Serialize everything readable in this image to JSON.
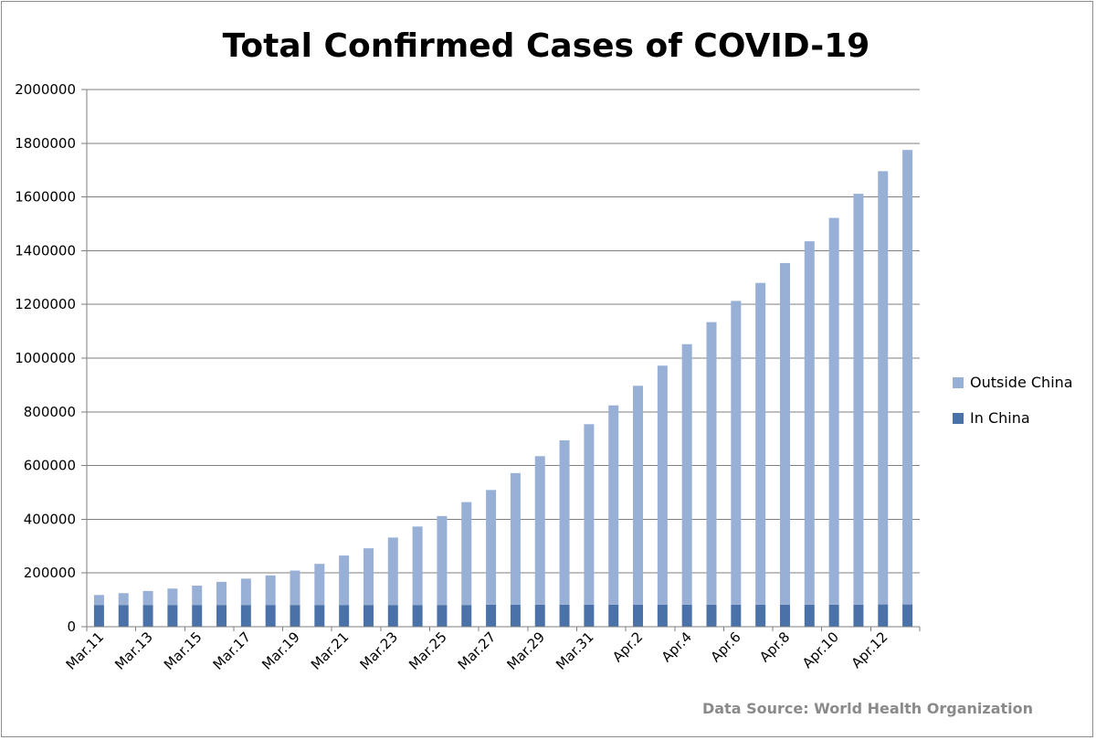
{
  "chart_data": {
    "type": "bar",
    "stacked": true,
    "title": "Total Confirmed Cases of COVID-19",
    "source_note": "Data Source: World Health Organization",
    "xlabel": "",
    "ylabel": "",
    "ylim": [
      0,
      2000000
    ],
    "y_ticks": [
      "0",
      "200000",
      "400000",
      "600000",
      "800000",
      "1000000",
      "1200000",
      "1400000",
      "1600000",
      "1800000",
      "2000000"
    ],
    "grid": true,
    "legend_position": "right",
    "categories": [
      "Mar.11",
      "Mar.12",
      "Mar.13",
      "Mar.14",
      "Mar.15",
      "Mar.16",
      "Mar.17",
      "Mar.18",
      "Mar.19",
      "Mar.20",
      "Mar.21",
      "Mar.22",
      "Mar.23",
      "Mar.24",
      "Mar.25",
      "Mar.26",
      "Mar.27",
      "Mar.28",
      "Mar.29",
      "Mar.30",
      "Mar.31",
      "Apr.1",
      "Apr.2",
      "Apr.3",
      "Apr.4",
      "Apr.5",
      "Apr.6",
      "Apr.7",
      "Apr.8",
      "Apr.9",
      "Apr.10",
      "Apr.11",
      "Apr.12",
      "Apr.13"
    ],
    "x_tick_labels": [
      "Mar.11",
      "",
      "Mar.13",
      "",
      "Mar.15",
      "",
      "Mar.17",
      "",
      "Mar.19",
      "",
      "Mar.21",
      "",
      "Mar.23",
      "",
      "Mar.25",
      "",
      "Mar.27",
      "",
      "Mar.29",
      "",
      "Mar.31",
      "",
      "Apr.2",
      "",
      "Apr.4",
      "",
      "Apr.6",
      "",
      "Apr.8",
      "",
      "Apr.10",
      "",
      "Apr.12",
      ""
    ],
    "series": [
      {
        "name": "In China",
        "color": "#4a72a8",
        "values": [
          81000,
          81000,
          81000,
          81000,
          81000,
          81000,
          81000,
          81000,
          81000,
          81000,
          81000,
          81000,
          81000,
          81000,
          81000,
          81000,
          82000,
          82000,
          82000,
          82000,
          82000,
          82000,
          82000,
          82000,
          82000,
          82000,
          82000,
          82000,
          82000,
          82000,
          82000,
          82000,
          83000,
          83000
        ]
      },
      {
        "name": "Outside China",
        "color": "#98afd6",
        "values": [
          37000,
          44000,
          52000,
          61000,
          72000,
          86000,
          98000,
          110000,
          128000,
          153000,
          184000,
          211000,
          251000,
          292000,
          331000,
          383000,
          427000,
          490000,
          553000,
          612000,
          672000,
          742000,
          815000,
          890000,
          970000,
          1052000,
          1131000,
          1198000,
          1272000,
          1353000,
          1440000,
          1530000,
          1613000,
          1692000
        ]
      }
    ],
    "legend": [
      {
        "name": "Outside China",
        "color": "#98afd6"
      },
      {
        "name": "In China",
        "color": "#4a72a8"
      }
    ]
  }
}
